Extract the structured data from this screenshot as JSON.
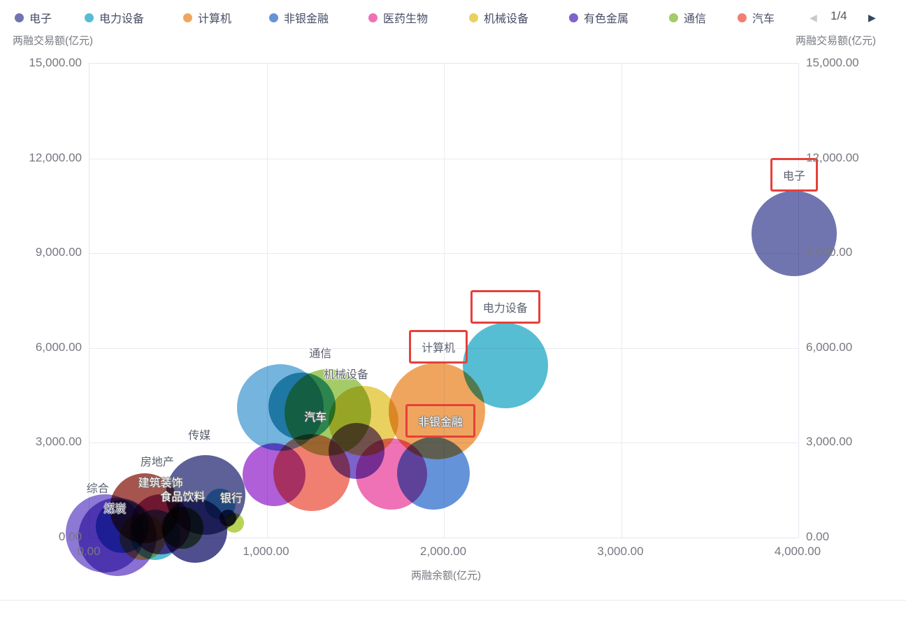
{
  "legend": {
    "items": [
      {
        "label": "电子",
        "color": "#7175af"
      },
      {
        "label": "电力设备",
        "color": "#57bdd3"
      },
      {
        "label": "计算机",
        "color": "#f0a55f"
      },
      {
        "label": "非银金融",
        "color": "#6593d9"
      },
      {
        "label": "医药生物",
        "color": "#ee72b5"
      },
      {
        "label": "机械设备",
        "color": "#e9d160"
      },
      {
        "label": "有色金属",
        "color": "#7d63cc"
      },
      {
        "label": "通信",
        "color": "#a5ca68"
      },
      {
        "label": "汽车",
        "color": "#f07f72"
      }
    ],
    "pager": {
      "prev": "◀",
      "page": "1/4",
      "next": "▶",
      "prev_color": "#c9cacd",
      "next_color": "#33475f"
    }
  },
  "axes": {
    "y_left_name": "两融交易额(亿元)",
    "y_right_name": "两融交易额(亿元)",
    "x_name": "两融余额(亿元)"
  },
  "annotation_color": "#e6403a",
  "chart_data": {
    "type": "scatter",
    "xlabel": "两融余额(亿元)",
    "ylabel": "两融交易额(亿元)",
    "xlim": [
      0,
      4000
    ],
    "ylim": [
      0,
      15000
    ],
    "x_ticks": [
      {
        "v": 0,
        "label": "0.00"
      },
      {
        "v": 1000,
        "label": "1,000.00"
      },
      {
        "v": 2000,
        "label": "2,000.00"
      },
      {
        "v": 3000,
        "label": "3,000.00"
      },
      {
        "v": 4000,
        "label": "4,000.00"
      }
    ],
    "y_ticks": [
      {
        "v": 0,
        "label": "0.00"
      },
      {
        "v": 3000,
        "label": "3,000.00"
      },
      {
        "v": 6000,
        "label": "6,000.00"
      },
      {
        "v": 9000,
        "label": "9,000.00"
      },
      {
        "v": 12000,
        "label": "12,000.00"
      },
      {
        "v": 15000,
        "label": "15,000.00"
      }
    ],
    "grid": true,
    "legend_position": "top",
    "series": [
      {
        "name": "",
        "x": 1080,
        "y": 4095,
        "r": 62,
        "color": "#74b4dd",
        "label": {
          "visible": false
        }
      },
      {
        "name": "",
        "x": 1205,
        "y": 4140,
        "r": 48,
        "color": "#43a8bc",
        "label": {
          "visible": false
        }
      },
      {
        "name": "通信",
        "x": 1350,
        "y": 3940,
        "r": 62,
        "color": "#a5ca68",
        "label": {
          "visible": true,
          "style": "dark",
          "boxed": false,
          "dx": -11,
          "dy": -6
        }
      },
      {
        "name": "机械设备",
        "x": 1550,
        "y": 3680,
        "r": 50,
        "color": "#e9d160",
        "label": {
          "visible": true,
          "style": "dark",
          "boxed": false,
          "dx": -25,
          "dy": 0
        }
      },
      {
        "name": "有色金属",
        "x": 1510,
        "y": 2720,
        "r": 40,
        "color": "#7d63cc",
        "label": {
          "visible": false
        }
      },
      {
        "name": "汽车",
        "x": 1260,
        "y": 2040,
        "r": 55,
        "color": "#f07f72",
        "label": {
          "visible": true,
          "style": "white",
          "boxed": false,
          "dx": 5,
          "dy": -8
        }
      },
      {
        "name": "",
        "x": 1045,
        "y": 1970,
        "r": 45,
        "color": "#b05fd8",
        "label": {
          "visible": false
        }
      },
      {
        "name": "医药生物",
        "x": 1710,
        "y": 2000,
        "r": 51,
        "color": "#ee72b5",
        "label": {
          "visible": false
        }
      },
      {
        "name": "计算机",
        "x": 1965,
        "y": 3985,
        "r": 69,
        "color": "#f0a55f",
        "label": {
          "visible": true,
          "style": "dark",
          "boxed": true,
          "dx": 2,
          "dy": 7
        }
      },
      {
        "name": "电力设备",
        "x": 2350,
        "y": 5420,
        "r": 61,
        "color": "#57bdd3",
        "label": {
          "visible": true,
          "style": "dark",
          "boxed": true,
          "dx": 0,
          "dy": 7
        }
      },
      {
        "name": "非银金融",
        "x": 1945,
        "y": 2010,
        "r": 52,
        "color": "#6593d9",
        "label": {
          "visible": true,
          "style": "white",
          "boxed": true,
          "dx": 10,
          "dy": 7
        }
      },
      {
        "name": "电子",
        "x": 3980,
        "y": 9600,
        "r": 61,
        "color": "#7175af",
        "label": {
          "visible": true,
          "style": "dark",
          "boxed": true,
          "dx": 0,
          "dy": 7
        }
      },
      {
        "name": "综合",
        "x": 90,
        "y": 120,
        "r": 56,
        "color": "#8d78d5",
        "label": {
          "visible": true,
          "style": "dark",
          "boxed": false,
          "dx": -10,
          "dy": 8
        }
      },
      {
        "name": "煤炭",
        "x": 160,
        "y": 0,
        "r": 56,
        "color": "#8a70d2",
        "label": {
          "visible": true,
          "style": "dark",
          "boxed": false,
          "dx": -3,
          "dy": 32
        }
      },
      {
        "name": "",
        "x": 190,
        "y": 330,
        "r": 38,
        "color": "#5e8fd8",
        "label": {
          "visible": false
        }
      },
      {
        "name": "",
        "x": 305,
        "y": 0,
        "r": 33,
        "color": "#e9d160",
        "label": {
          "visible": false
        }
      },
      {
        "name": "",
        "x": 375,
        "y": 65,
        "r": 36,
        "color": "#57bdd3",
        "label": {
          "visible": false
        }
      },
      {
        "name": "房地产",
        "x": 315,
        "y": 910,
        "r": 50,
        "color": "#a5544e",
        "label": {
          "visible": true,
          "style": "dark",
          "boxed": false,
          "dx": 18,
          "dy": 0
        }
      },
      {
        "name": "建筑装饰",
        "x": 405,
        "y": 400,
        "r": 43,
        "color": "#ab459d",
        "label": {
          "visible": true,
          "style": "white",
          "boxed": false,
          "dx": 0,
          "dy": 0
        }
      },
      {
        "name": "",
        "x": 600,
        "y": 200,
        "r": 46,
        "color": "#4f4e8e",
        "label": {
          "visible": false
        }
      },
      {
        "name": "食品饮料",
        "x": 530,
        "y": 290,
        "r": 30,
        "color": "#5d8b4f",
        "label": {
          "visible": true,
          "style": "white",
          "boxed": false,
          "dx": 0,
          "dy": 2
        }
      },
      {
        "name": "传媒",
        "x": 660,
        "y": 1330,
        "r": 57,
        "color": "#5d6198",
        "label": {
          "visible": true,
          "style": "dark",
          "boxed": false,
          "dx": -9,
          "dy": -12
        }
      },
      {
        "name": "",
        "x": 740,
        "y": 1040,
        "r": 22,
        "color": "#57bdd3",
        "label": {
          "visible": false
        }
      },
      {
        "name": "",
        "x": 785,
        "y": 600,
        "r": 12,
        "color": "#3c4069",
        "label": {
          "visible": false
        }
      },
      {
        "name": "银行",
        "x": 820,
        "y": 445,
        "r": 14,
        "color": "#b9d356",
        "label": {
          "visible": true,
          "style": "white",
          "boxed": false,
          "dx": -4,
          "dy": -5
        }
      }
    ]
  }
}
